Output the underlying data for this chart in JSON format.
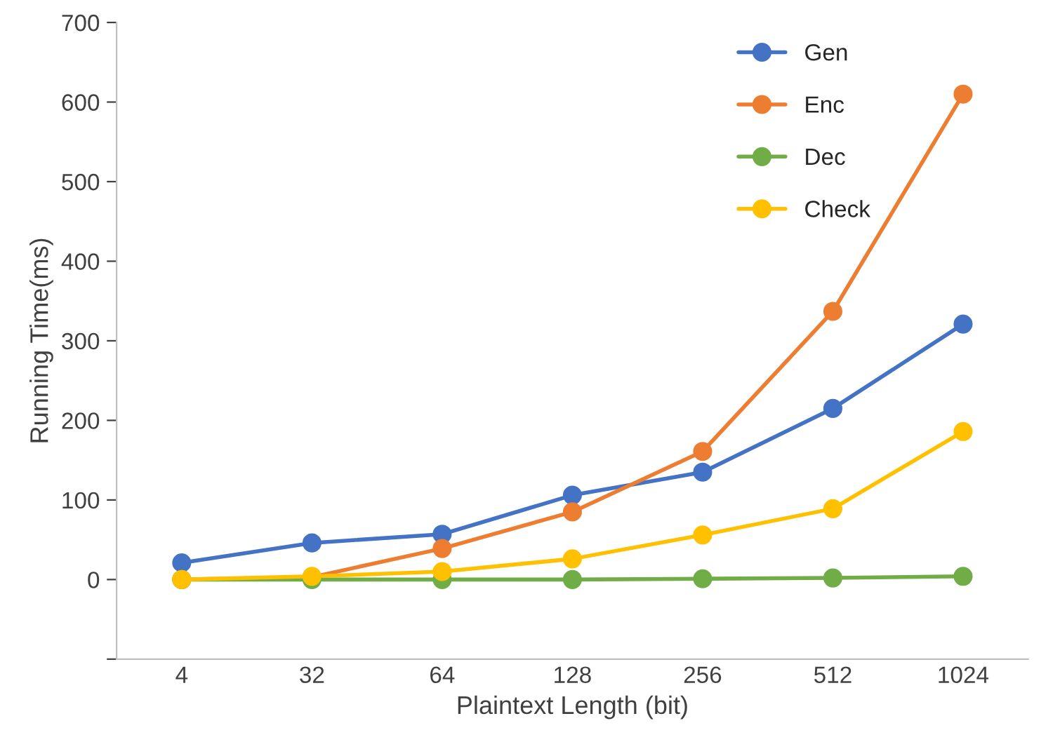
{
  "chart_data": {
    "type": "line",
    "xlabel": "Plaintext Length (bit)",
    "ylabel": "Running Time(ms)",
    "categories": [
      "4",
      "32",
      "64",
      "128",
      "256",
      "512",
      "1024"
    ],
    "series": [
      {
        "name": "Gen",
        "color": "#4472c4",
        "values": [
          21,
          46,
          57,
          106,
          135,
          215,
          321
        ]
      },
      {
        "name": "Enc",
        "color": "#ed7d31",
        "values": [
          0,
          3,
          39,
          85,
          161,
          337,
          610
        ]
      },
      {
        "name": "Dec",
        "color": "#70ad47",
        "values": [
          0,
          0,
          0,
          0,
          1,
          2,
          4
        ]
      },
      {
        "name": "Check",
        "color": "#ffc000",
        "values": [
          0,
          4,
          10,
          26,
          56,
          89,
          186
        ]
      }
    ],
    "ylim": [
      -100,
      700
    ],
    "yticks": [
      {
        "value": -100,
        "label": null
      },
      0,
      100,
      200,
      300,
      400,
      500,
      600,
      700
    ],
    "marker": "circle",
    "line_style": "solid",
    "grid": false,
    "legend": "top right"
  }
}
